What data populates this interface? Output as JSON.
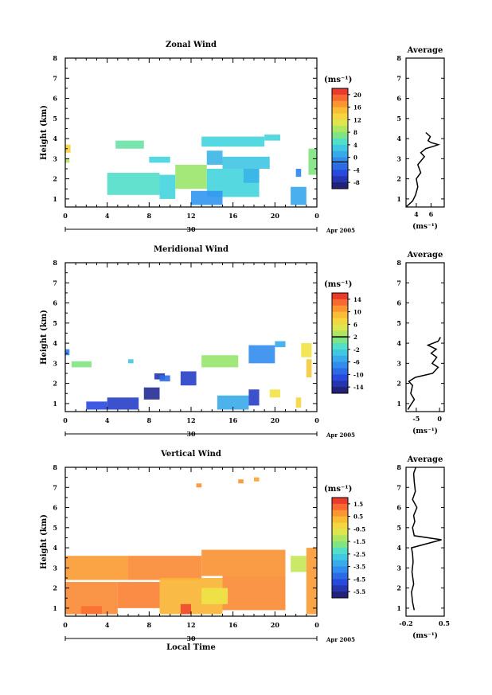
{
  "figure": {
    "month_label": "Apr 2005",
    "day_label": "30",
    "xlabel": "Local Time",
    "ylabel": "Height (km)",
    "avg_title": "Average",
    "unit": "(ms⁻¹)"
  },
  "chart_data": [
    {
      "type": "heatmap",
      "title": "Zonal Wind",
      "xlabel": "",
      "ylabel": "Height (km)",
      "x_ticks": [
        "0",
        "4",
        "8",
        "12",
        "16",
        "20",
        "0"
      ],
      "xlim": [
        0,
        24
      ],
      "ylim": [
        0.6,
        8
      ],
      "y_ticks": [
        "1",
        "2",
        "3",
        "4",
        "5",
        "6",
        "7",
        "8"
      ],
      "colorbar": {
        "unit": "(ms⁻¹)",
        "ticks": [
          "20",
          "16",
          "12",
          "8",
          "4",
          "0",
          "-4",
          "-8"
        ],
        "range": [
          -8,
          22
        ],
        "contour": 0
      },
      "cells": [
        {
          "x": [
            0,
            0.5
          ],
          "y": [
            3.3,
            3.7
          ],
          "value": 14
        },
        {
          "x": [
            0,
            0.4
          ],
          "y": [
            2.8,
            3.0
          ],
          "value": 10
        },
        {
          "x": [
            4.8,
            7.5
          ],
          "y": [
            3.5,
            3.9
          ],
          "value": 7
        },
        {
          "x": [
            8,
            10
          ],
          "y": [
            2.8,
            3.1
          ],
          "value": 5
        },
        {
          "x": [
            13,
            19
          ],
          "y": [
            3.6,
            4.1
          ],
          "value": 5
        },
        {
          "x": [
            19,
            20.5
          ],
          "y": [
            3.9,
            4.2
          ],
          "value": 5
        },
        {
          "x": [
            13.5,
            15
          ],
          "y": [
            2.7,
            3.4
          ],
          "value": 3
        },
        {
          "x": [
            15,
            19.5
          ],
          "y": [
            2.5,
            3.1
          ],
          "value": 4
        },
        {
          "x": [
            10.5,
            13.5
          ],
          "y": [
            1.5,
            2.7
          ],
          "value": 9
        },
        {
          "x": [
            13.5,
            18.5
          ],
          "y": [
            1.1,
            2.5
          ],
          "value": 5
        },
        {
          "x": [
            12,
            15
          ],
          "y": [
            0.7,
            1.4
          ],
          "value": 1
        },
        {
          "x": [
            4,
            9
          ],
          "y": [
            1.2,
            2.3
          ],
          "value": 6
        },
        {
          "x": [
            9,
            10.5
          ],
          "y": [
            1.0,
            2.2
          ],
          "value": 5
        },
        {
          "x": [
            17,
            18.5
          ],
          "y": [
            1.8,
            2.5
          ],
          "value": 3
        },
        {
          "x": [
            21.5,
            23
          ],
          "y": [
            0.7,
            1.6
          ],
          "value": 2
        },
        {
          "x": [
            23.2,
            24
          ],
          "y": [
            2.2,
            3.5
          ],
          "value": 8
        },
        {
          "x": [
            22,
            22.5
          ],
          "y": [
            2.1,
            2.5
          ],
          "value": 0
        }
      ],
      "average": {
        "xlim": [
          2.6,
          7.8
        ],
        "x_ticks": [
          "4",
          "6"
        ],
        "unit": "(ms⁻¹)",
        "profile": [
          [
            2.6,
            0.6
          ],
          [
            3.5,
            0.9
          ],
          [
            3.9,
            1.2
          ],
          [
            4.2,
            1.6
          ],
          [
            4.0,
            2.0
          ],
          [
            4.6,
            2.3
          ],
          [
            4.2,
            2.7
          ],
          [
            5.1,
            3.1
          ],
          [
            4.6,
            3.3
          ],
          [
            5.3,
            3.5
          ],
          [
            6.2,
            3.6
          ],
          [
            7.0,
            3.7
          ],
          [
            6.0,
            3.8
          ],
          [
            5.6,
            3.9
          ],
          [
            5.9,
            4.1
          ],
          [
            5.3,
            4.3
          ]
        ]
      }
    },
    {
      "type": "heatmap",
      "title": "Meridional Wind",
      "xlabel": "",
      "ylabel": "Height (km)",
      "x_ticks": [
        "0",
        "4",
        "8",
        "12",
        "16",
        "20",
        "0"
      ],
      "xlim": [
        0,
        24
      ],
      "ylim": [
        0.6,
        8
      ],
      "y_ticks": [
        "1",
        "2",
        "3",
        "4",
        "5",
        "6",
        "7",
        "8"
      ],
      "colorbar": {
        "unit": "(ms⁻¹)",
        "ticks": [
          "14",
          "10",
          "6",
          "2",
          "-2",
          "-6",
          "-10",
          "-14"
        ],
        "range": [
          -16,
          16
        ],
        "contour": 2
      },
      "cells": [
        {
          "x": [
            0,
            0.4
          ],
          "y": [
            3.4,
            3.7
          ],
          "value": -8
        },
        {
          "x": [
            0.6,
            2.5
          ],
          "y": [
            2.8,
            3.1
          ],
          "value": 1
        },
        {
          "x": [
            6,
            6.5
          ],
          "y": [
            3.0,
            3.2
          ],
          "value": -3
        },
        {
          "x": [
            13,
            16.5
          ],
          "y": [
            2.8,
            3.4
          ],
          "value": 2
        },
        {
          "x": [
            17.5,
            20
          ],
          "y": [
            3.0,
            3.9
          ],
          "value": -7
        },
        {
          "x": [
            20,
            21
          ],
          "y": [
            3.8,
            4.1
          ],
          "value": -5
        },
        {
          "x": [
            22.5,
            23.5
          ],
          "y": [
            3.3,
            4.0
          ],
          "value": 6
        },
        {
          "x": [
            8.5,
            9.5
          ],
          "y": [
            2.2,
            2.5
          ],
          "value": -13
        },
        {
          "x": [
            11,
            12.5
          ],
          "y": [
            1.9,
            2.6
          ],
          "value": -12
        },
        {
          "x": [
            9,
            10
          ],
          "y": [
            2.1,
            2.4
          ],
          "value": -9
        },
        {
          "x": [
            7.5,
            9
          ],
          "y": [
            1.2,
            1.8
          ],
          "value": -14
        },
        {
          "x": [
            4,
            7
          ],
          "y": [
            0.7,
            1.3
          ],
          "value": -12
        },
        {
          "x": [
            2,
            4
          ],
          "y": [
            0.7,
            1.1
          ],
          "value": -11
        },
        {
          "x": [
            14.5,
            17.5
          ],
          "y": [
            0.7,
            1.4
          ],
          "value": -5
        },
        {
          "x": [
            17.5,
            18.5
          ],
          "y": [
            0.9,
            1.7
          ],
          "value": -12
        },
        {
          "x": [
            19.5,
            20.5
          ],
          "y": [
            1.3,
            1.7
          ],
          "value": 6
        },
        {
          "x": [
            22,
            22.5
          ],
          "y": [
            0.8,
            1.3
          ],
          "value": 7
        },
        {
          "x": [
            23,
            23.5
          ],
          "y": [
            2.3,
            3.2
          ],
          "value": 8
        }
      ],
      "average": {
        "xlim": [
          -7.2,
          1.0
        ],
        "x_ticks": [
          "-5",
          "0"
        ],
        "unit": "(ms⁻¹)",
        "profile": [
          [
            -6.8,
            0.7
          ],
          [
            -6.0,
            1.0
          ],
          [
            -5.4,
            1.2
          ],
          [
            -6.2,
            1.5
          ],
          [
            -5.8,
            1.9
          ],
          [
            -6.6,
            2.1
          ],
          [
            -5.2,
            2.3
          ],
          [
            -1.5,
            2.5
          ],
          [
            -0.3,
            2.8
          ],
          [
            -1.6,
            3.0
          ],
          [
            -0.6,
            3.3
          ],
          [
            -1.8,
            3.5
          ],
          [
            -0.7,
            3.7
          ],
          [
            -2.5,
            3.9
          ],
          [
            -0.3,
            4.1
          ],
          [
            0.2,
            4.3
          ]
        ]
      }
    },
    {
      "type": "heatmap",
      "title": "Vertical Wind",
      "xlabel": "Local Time",
      "ylabel": "Height (km)",
      "x_ticks": [
        "0",
        "4",
        "8",
        "12",
        "16",
        "20",
        "0"
      ],
      "xlim": [
        0,
        24
      ],
      "ylim": [
        0.6,
        8
      ],
      "y_ticks": [
        "1",
        "2",
        "3",
        "4",
        "5",
        "6",
        "7",
        "8"
      ],
      "colorbar": {
        "unit": "(ms⁻¹)",
        "ticks": [
          "1.5",
          "0.5",
          "-0.5",
          "-1.5",
          "-2.5",
          "-3.5",
          "-4.5",
          "-5.5"
        ],
        "range": [
          -6,
          2
        ],
        "contour": null
      },
      "cells": [
        {
          "x": [
            12.5,
            13
          ],
          "y": [
            7.0,
            7.2
          ],
          "value": 0.8
        },
        {
          "x": [
            16.5,
            17
          ],
          "y": [
            7.2,
            7.4
          ],
          "value": 0.8
        },
        {
          "x": [
            18,
            18.5
          ],
          "y": [
            7.3,
            7.5
          ],
          "value": 0.6
        },
        {
          "x": [
            0,
            6
          ],
          "y": [
            2.4,
            3.6
          ],
          "value": 0.7
        },
        {
          "x": [
            6,
            13
          ],
          "y": [
            2.4,
            3.6
          ],
          "value": 0.9
        },
        {
          "x": [
            13,
            21
          ],
          "y": [
            2.6,
            3.9
          ],
          "value": 0.8
        },
        {
          "x": [
            0,
            5
          ],
          "y": [
            0.7,
            2.3
          ],
          "value": 0.9
        },
        {
          "x": [
            5,
            9
          ],
          "y": [
            1.0,
            2.3
          ],
          "value": 1.0
        },
        {
          "x": [
            9,
            15
          ],
          "y": [
            0.7,
            2.5
          ],
          "value": 0.4
        },
        {
          "x": [
            15,
            21
          ],
          "y": [
            0.9,
            2.6
          ],
          "value": 0.9
        },
        {
          "x": [
            11,
            12
          ],
          "y": [
            0.7,
            1.2
          ],
          "value": 1.6
        },
        {
          "x": [
            13,
            15.5
          ],
          "y": [
            1.2,
            2.0
          ],
          "value": -0.6
        },
        {
          "x": [
            21.5,
            23
          ],
          "y": [
            2.8,
            3.6
          ],
          "value": -1.0
        },
        {
          "x": [
            23,
            24
          ],
          "y": [
            0.7,
            4.0
          ],
          "value": 0.7
        },
        {
          "x": [
            1.5,
            3.5
          ],
          "y": [
            0.7,
            1.1
          ],
          "value": 1.2
        }
      ],
      "average": {
        "xlim": [
          -0.2,
          0.5
        ],
        "x_ticks": [
          "-0.2",
          "0.5"
        ],
        "unit": "(ms⁻¹)",
        "profile": [
          [
            -0.05,
            0.9
          ],
          [
            -0.08,
            1.3
          ],
          [
            -0.1,
            1.8
          ],
          [
            -0.06,
            2.2
          ],
          [
            -0.09,
            2.8
          ],
          [
            -0.07,
            3.3
          ],
          [
            -0.08,
            3.7
          ],
          [
            -0.1,
            4.0
          ],
          [
            0.45,
            4.4
          ],
          [
            -0.05,
            4.6
          ],
          [
            -0.08,
            5.0
          ],
          [
            -0.04,
            5.3
          ],
          [
            -0.06,
            5.6
          ],
          [
            0.0,
            6.0
          ],
          [
            -0.08,
            6.4
          ],
          [
            -0.03,
            6.8
          ],
          [
            -0.05,
            7.3
          ],
          [
            -0.06,
            7.7
          ],
          [
            -0.02,
            8.0
          ]
        ]
      }
    }
  ]
}
